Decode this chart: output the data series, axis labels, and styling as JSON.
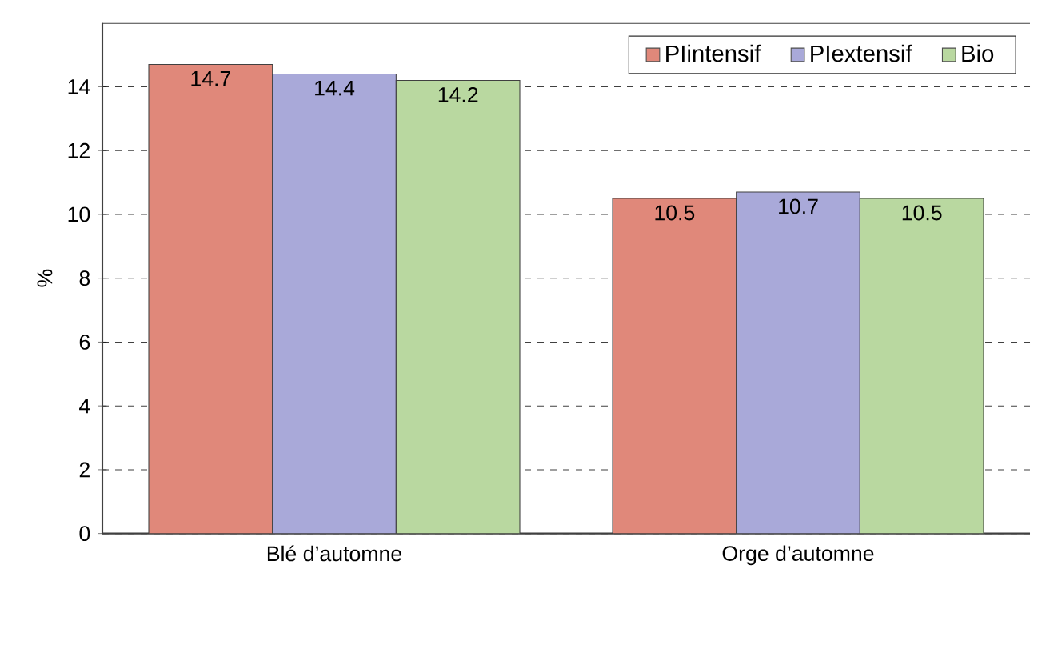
{
  "chart_data": {
    "type": "bar",
    "ylabel": "%",
    "categories": [
      "Blé d’automne",
      "Orge d’automne"
    ],
    "series": [
      {
        "name": "PIintensif",
        "color": "#e0887a",
        "values": [
          14.7,
          10.5
        ]
      },
      {
        "name": "PIextensif",
        "color": "#a9a9d9",
        "values": [
          14.4,
          10.7
        ]
      },
      {
        "name": "Bio",
        "color": "#b9d8a0",
        "values": [
          14.2,
          10.5
        ]
      }
    ],
    "ylim": [
      0,
      16
    ],
    "yticks": [
      0,
      2,
      4,
      6,
      8,
      10,
      12,
      14
    ],
    "grid": "y",
    "legend": "top right",
    "data_labels": true
  }
}
